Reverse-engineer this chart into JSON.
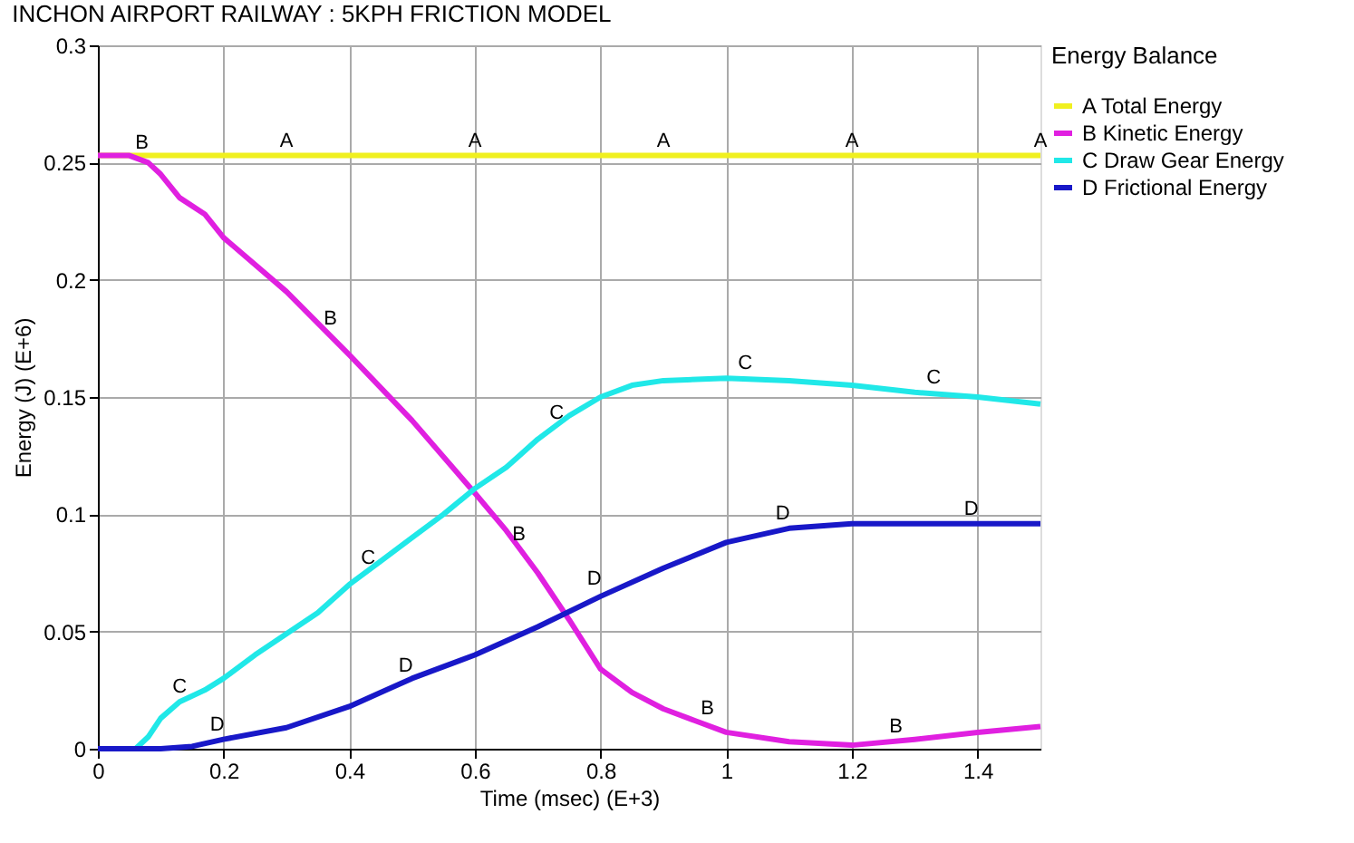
{
  "chart_data": {
    "type": "line",
    "title": "INCHON AIRPORT RAILWAY : 5KPH FRICTION MODEL",
    "xlabel": "Time (msec) (E+3)",
    "ylabel": "Energy (J) (E+6)",
    "legend_title": "Energy Balance",
    "legend": "top right",
    "grid": true,
    "marker": "none",
    "line_style": "solid",
    "xlim": [
      0,
      1.5
    ],
    "xticks": [
      0,
      0.2,
      0.4,
      0.6,
      0.8,
      1,
      1.2,
      1.4
    ],
    "ylim": [
      0,
      0.3
    ],
    "yticks": [
      0,
      0.05,
      0.1,
      0.15,
      0.2,
      0.25,
      0.3
    ],
    "series": [
      {
        "name": "A Total Energy",
        "color": "#f0f020",
        "x": [
          0,
          1.5
        ],
        "values": [
          0.253,
          0.253
        ]
      },
      {
        "name": "B Kinetic Energy",
        "color": "#e020e0",
        "x": [
          0,
          0.05,
          0.08,
          0.1,
          0.13,
          0.17,
          0.2,
          0.3,
          0.4,
          0.5,
          0.6,
          0.65,
          0.7,
          0.75,
          0.8,
          0.85,
          0.9,
          0.95,
          1.0,
          1.1,
          1.2,
          1.3,
          1.4,
          1.5
        ],
        "values": [
          0.253,
          0.253,
          0.25,
          0.245,
          0.235,
          0.228,
          0.218,
          0.195,
          0.168,
          0.14,
          0.109,
          0.093,
          0.075,
          0.055,
          0.034,
          0.024,
          0.017,
          0.012,
          0.007,
          0.003,
          0.0015,
          0.004,
          0.007,
          0.0095
        ]
      },
      {
        "name": "C Draw Gear Energy",
        "color": "#20e8e8",
        "x": [
          0,
          0.06,
          0.08,
          0.1,
          0.13,
          0.17,
          0.2,
          0.25,
          0.3,
          0.35,
          0.4,
          0.45,
          0.5,
          0.55,
          0.6,
          0.65,
          0.7,
          0.75,
          0.8,
          0.85,
          0.9,
          1.0,
          1.1,
          1.2,
          1.3,
          1.4,
          1.5
        ],
        "values": [
          0,
          0,
          0.005,
          0.013,
          0.02,
          0.025,
          0.03,
          0.04,
          0.049,
          0.058,
          0.07,
          0.08,
          0.09,
          0.1,
          0.111,
          0.12,
          0.132,
          0.142,
          0.15,
          0.155,
          0.157,
          0.158,
          0.157,
          0.155,
          0.152,
          0.15,
          0.147
        ]
      },
      {
        "name": "D Frictional Energy",
        "color": "#1818c8",
        "x": [
          0,
          0.1,
          0.15,
          0.2,
          0.3,
          0.4,
          0.5,
          0.6,
          0.7,
          0.8,
          0.9,
          1.0,
          1.1,
          1.2,
          1.5
        ],
        "values": [
          0,
          0,
          0.001,
          0.004,
          0.009,
          0.018,
          0.03,
          0.04,
          0.052,
          0.065,
          0.077,
          0.088,
          0.094,
          0.096,
          0.096
        ]
      }
    ],
    "annotations": [
      {
        "text": "A",
        "x": 0.3,
        "y": 0.253
      },
      {
        "text": "A",
        "x": 0.6,
        "y": 0.253
      },
      {
        "text": "A",
        "x": 0.9,
        "y": 0.253
      },
      {
        "text": "A",
        "x": 1.2,
        "y": 0.253
      },
      {
        "text": "A",
        "x": 1.5,
        "y": 0.253
      },
      {
        "text": "B",
        "x": 0.07,
        "y": 0.252
      },
      {
        "text": "B",
        "x": 0.37,
        "y": 0.177
      },
      {
        "text": "B",
        "x": 0.67,
        "y": 0.085
      },
      {
        "text": "B",
        "x": 0.97,
        "y": 0.011
      },
      {
        "text": "B",
        "x": 1.27,
        "y": 0.003
      },
      {
        "text": "C",
        "x": 0.13,
        "y": 0.02
      },
      {
        "text": "C",
        "x": 0.43,
        "y": 0.075
      },
      {
        "text": "C",
        "x": 0.73,
        "y": 0.137
      },
      {
        "text": "C",
        "x": 1.03,
        "y": 0.158
      },
      {
        "text": "C",
        "x": 1.33,
        "y": 0.152
      },
      {
        "text": "D",
        "x": 0.19,
        "y": 0.004
      },
      {
        "text": "D",
        "x": 0.49,
        "y": 0.029
      },
      {
        "text": "D",
        "x": 0.79,
        "y": 0.066
      },
      {
        "text": "D",
        "x": 1.09,
        "y": 0.094
      },
      {
        "text": "D",
        "x": 1.39,
        "y": 0.096
      }
    ]
  }
}
